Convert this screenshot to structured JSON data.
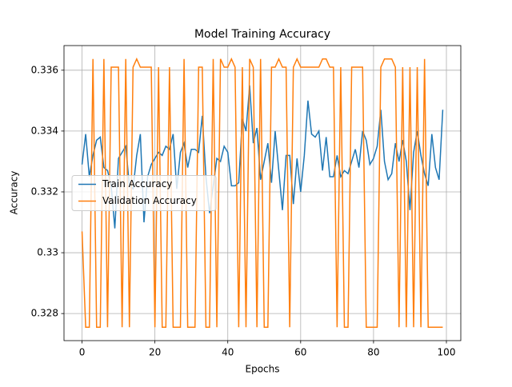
{
  "chart_data": {
    "type": "line",
    "title": "Model Training Accuracy",
    "x_label": "Epochs",
    "y_label": "Accuracy",
    "x": [
      0,
      1,
      2,
      3,
      4,
      5,
      6,
      7,
      8,
      9,
      10,
      11,
      12,
      13,
      14,
      15,
      16,
      17,
      18,
      19,
      20,
      21,
      22,
      23,
      24,
      25,
      26,
      27,
      28,
      29,
      30,
      31,
      32,
      33,
      34,
      35,
      36,
      37,
      38,
      39,
      40,
      41,
      42,
      43,
      44,
      45,
      46,
      47,
      48,
      49,
      50,
      51,
      52,
      53,
      54,
      55,
      56,
      57,
      58,
      59,
      60,
      61,
      62,
      63,
      64,
      65,
      66,
      67,
      68,
      69,
      70,
      71,
      72,
      73,
      74,
      75,
      76,
      77,
      78,
      79,
      80,
      81,
      82,
      83,
      84,
      85,
      86,
      87,
      88,
      89,
      90,
      91,
      92,
      93,
      94,
      95,
      96,
      97,
      98,
      99
    ],
    "series": [
      {
        "name": "Train Accuracy",
        "color": "#1f77b4",
        "values": [
          0.3329,
          0.3339,
          0.3325,
          0.3332,
          0.3337,
          0.3338,
          0.3328,
          0.3327,
          0.3322,
          0.3308,
          0.3331,
          0.3333,
          0.3335,
          0.3322,
          0.3321,
          0.3332,
          0.3339,
          0.331,
          0.3325,
          0.3329,
          0.3331,
          0.3333,
          0.3332,
          0.3335,
          0.3334,
          0.3339,
          0.3321,
          0.3333,
          0.3336,
          0.3328,
          0.3334,
          0.3334,
          0.3333,
          0.3345,
          0.3325,
          0.3313,
          0.3322,
          0.3331,
          0.333,
          0.3335,
          0.3333,
          0.3322,
          0.3322,
          0.3323,
          0.3344,
          0.334,
          0.3355,
          0.3336,
          0.3341,
          0.3324,
          0.333,
          0.3336,
          0.3323,
          0.334,
          0.3327,
          0.3314,
          0.3332,
          0.3332,
          0.3316,
          0.3331,
          0.332,
          0.3332,
          0.335,
          0.3339,
          0.3338,
          0.334,
          0.3327,
          0.3338,
          0.3325,
          0.3325,
          0.3332,
          0.3325,
          0.3327,
          0.3326,
          0.333,
          0.3334,
          0.3328,
          0.334,
          0.3337,
          0.3329,
          0.3331,
          0.3335,
          0.3347,
          0.333,
          0.3324,
          0.3326,
          0.3336,
          0.333,
          0.3337,
          0.333,
          0.3314,
          0.3333,
          0.334,
          0.3332,
          0.3326,
          0.3322,
          0.3339,
          0.3328,
          0.3324,
          0.3347
        ]
      },
      {
        "name": "Validation Accuracy",
        "color": "#ff7f0e",
        "values": [
          0.3307,
          0.32755,
          0.32755,
          0.33637,
          0.32755,
          0.32755,
          0.33637,
          0.32755,
          0.3361,
          0.3361,
          0.3361,
          0.32755,
          0.33637,
          0.32755,
          0.3361,
          0.33637,
          0.3361,
          0.3361,
          0.3361,
          0.3361,
          0.32755,
          0.3361,
          0.32755,
          0.32755,
          0.3361,
          0.32755,
          0.32755,
          0.32755,
          0.33637,
          0.32755,
          0.32755,
          0.32755,
          0.3361,
          0.3361,
          0.32755,
          0.32755,
          0.33637,
          0.32755,
          0.33637,
          0.3361,
          0.3361,
          0.33637,
          0.3361,
          0.32755,
          0.3361,
          0.32755,
          0.33637,
          0.3361,
          0.32755,
          0.33637,
          0.32755,
          0.32755,
          0.3361,
          0.3361,
          0.33637,
          0.3361,
          0.3361,
          0.32755,
          0.3361,
          0.33637,
          0.3361,
          0.3361,
          0.3361,
          0.3361,
          0.3361,
          0.3361,
          0.33637,
          0.33637,
          0.3361,
          0.3361,
          0.32755,
          0.3361,
          0.32755,
          0.32755,
          0.3361,
          0.3361,
          0.3361,
          0.3361,
          0.32755,
          0.32755,
          0.32755,
          0.32755,
          0.3361,
          0.33637,
          0.33637,
          0.33637,
          0.3361,
          0.32755,
          0.3361,
          0.32755,
          0.3361,
          0.32755,
          0.3361,
          0.32755,
          0.33637,
          0.32755,
          0.32755,
          0.32755,
          0.32755,
          0.32755
        ]
      }
    ],
    "xlim": [
      -4.95,
      103.95
    ],
    "ylim": [
      0.32711,
      0.33681
    ],
    "xticks": [
      0,
      20,
      40,
      60,
      80,
      100
    ],
    "yticks": [
      0.328,
      0.33,
      0.332,
      0.334,
      0.336
    ],
    "grid": true,
    "legend": "center left"
  }
}
